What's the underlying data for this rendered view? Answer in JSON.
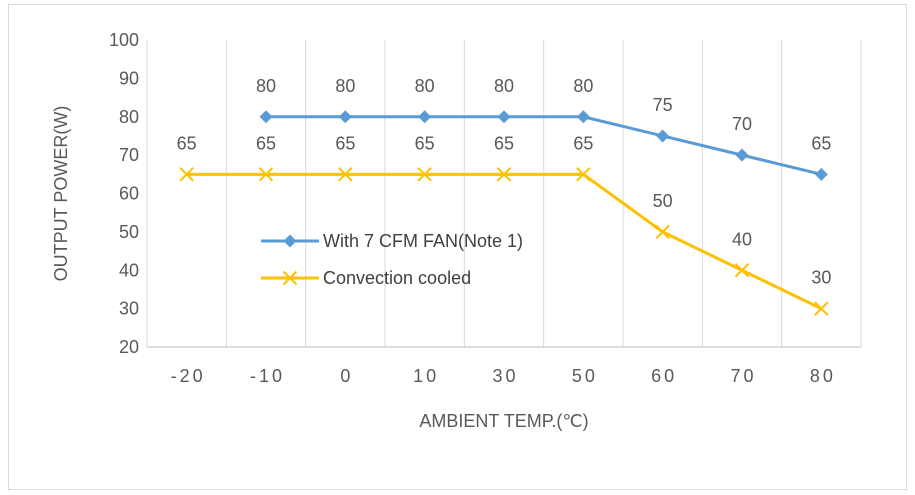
{
  "chart_data": {
    "type": "line",
    "title": "",
    "xlabel": "AMBIENT TEMP.(℃)",
    "ylabel": "OUTPUT POWER(W)",
    "categories": [
      "-20",
      "-10",
      "0",
      "10",
      "30",
      "50",
      "60",
      "70",
      "80"
    ],
    "ylim": [
      20,
      100
    ],
    "yticks": [
      20,
      30,
      40,
      50,
      60,
      70,
      80,
      90,
      100
    ],
    "grid": "vertical",
    "legend_position": "center-left",
    "series": [
      {
        "name": "With 7 CFM FAN(Note 1)",
        "marker": "diamond",
        "color": "#5b9bd5",
        "values": [
          null,
          80,
          80,
          80,
          80,
          80,
          75,
          70,
          65
        ],
        "labels": [
          "",
          "80",
          "80",
          "80",
          "80",
          "80",
          "75",
          "70",
          "65"
        ]
      },
      {
        "name": "Convection cooled",
        "marker": "x",
        "color": "#ffc000",
        "values": [
          65,
          65,
          65,
          65,
          65,
          65,
          50,
          40,
          30
        ],
        "labels": [
          "65",
          "65",
          "65",
          "65",
          "65",
          "65",
          "50",
          "40",
          "30"
        ]
      }
    ]
  }
}
